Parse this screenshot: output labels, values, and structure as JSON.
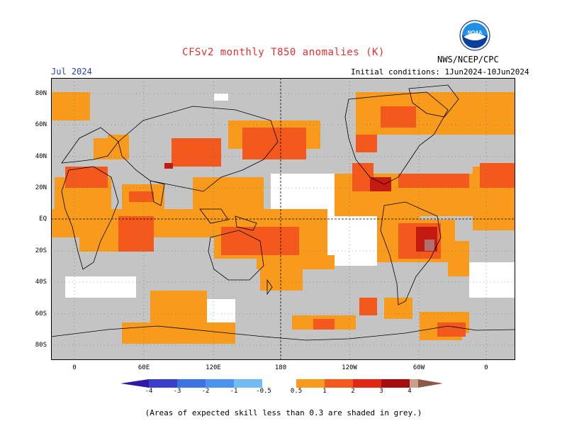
{
  "title": "CFSv2 monthly T850 anomalies (K)",
  "valid_period": "Jul 2024",
  "initial_conditions": "Initial conditions: 1Jun2024-10Jun2024",
  "agency": "NWS/NCEP/CPC",
  "logo_text": "NOAA",
  "latitude_labels": [
    "80N",
    "60N",
    "40N",
    "20N",
    "EQ",
    "20S",
    "40S",
    "60S",
    "80S"
  ],
  "longitude_labels": [
    "0",
    "60E",
    "120E",
    "180",
    "120W",
    "60W",
    "0"
  ],
  "colorbar_labels": [
    "-4",
    "-3",
    "-2",
    "-1",
    "-0.5",
    "0.5",
    "1",
    "2",
    "3",
    "4"
  ],
  "colorbar_colors": [
    "#2c1aa8",
    "#3a40cc",
    "#3f72e3",
    "#4a94ef",
    "#74baf4",
    "#ffffff",
    "#f89a1c",
    "#f3591c",
    "#e02815",
    "#a80c0c",
    "#c8a090",
    "#8c5a48"
  ],
  "colors": {
    "grey_low_skill": "#c4c4c4",
    "anom_05_1": "#f89a1c",
    "anom_1_2": "#f3591c",
    "anom_2_3": "#c41a10",
    "anom_3_4": "#b07070",
    "coast": "#000000",
    "title": "#e0302e",
    "date": "#2a3fb0"
  },
  "footnote": "(Areas of expected skill less than 0.3 are shaded in grey.)"
}
